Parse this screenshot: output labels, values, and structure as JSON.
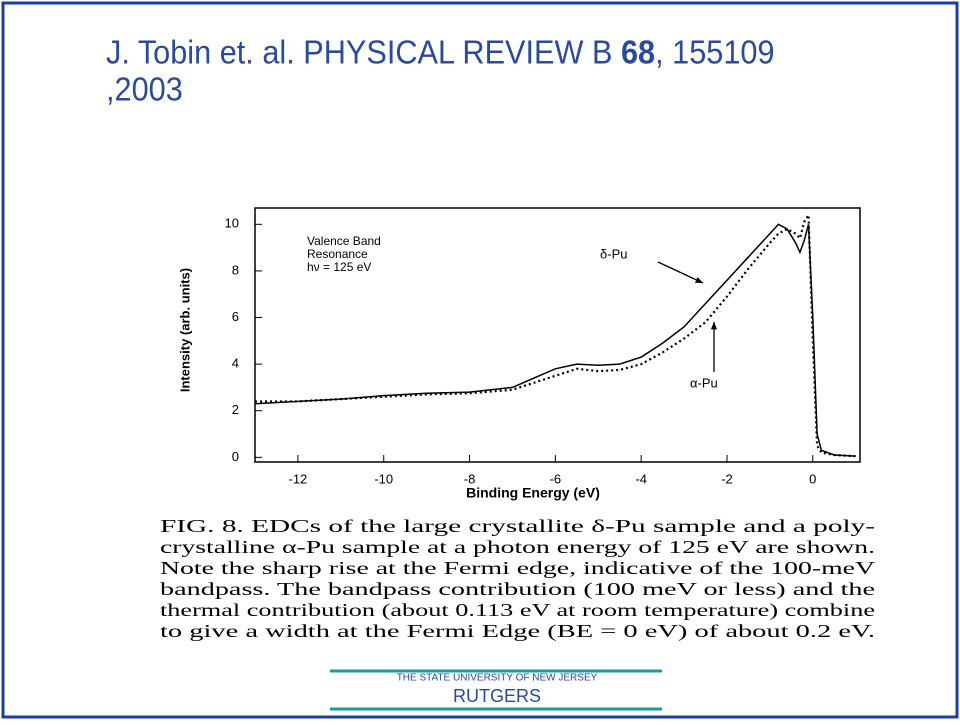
{
  "title": {
    "prefix": "J. Tobin et. al. PHYSICAL REVIEW B ",
    "volume": "68",
    "suffix": ", 155109",
    "line2": ",2003"
  },
  "chart_data": {
    "type": "line",
    "x_label": "Binding Energy (eV)",
    "y_label": "Intensity (arb. units)",
    "annotations": [
      "Valence Band",
      "Resonance",
      "hν = 125 eV"
    ],
    "x": [
      -13,
      -12,
      -11,
      -10,
      -9,
      -8,
      -7,
      -6.5,
      -6,
      -5.5,
      -5,
      -4.5,
      -4,
      -3.5,
      -3,
      -2.5,
      -2,
      -1.5,
      -1,
      -0.8,
      -0.6,
      -0.4,
      -0.3,
      -0.2,
      -0.1,
      0,
      0.1,
      0.2,
      0.5,
      1
    ],
    "series": [
      {
        "name": "δ-Pu",
        "color": "#000000",
        "style": "solid",
        "values": [
          2.3,
          2.4,
          2.5,
          2.65,
          2.75,
          2.8,
          3.0,
          3.4,
          3.8,
          4.0,
          3.95,
          4.0,
          4.3,
          4.9,
          5.6,
          6.6,
          7.6,
          8.6,
          9.6,
          10.0,
          9.8,
          9.2,
          8.8,
          9.3,
          10.0,
          6,
          1,
          0.3,
          0.1,
          0.05
        ]
      },
      {
        "name": "α-Pu",
        "color": "#000000",
        "style": "dotted",
        "values": [
          2.4,
          2.4,
          2.5,
          2.6,
          2.7,
          2.75,
          2.9,
          3.2,
          3.5,
          3.8,
          3.7,
          3.75,
          4.0,
          4.5,
          5.1,
          5.8,
          6.9,
          8.1,
          9.2,
          9.6,
          9.8,
          9.6,
          9.4,
          10.1,
          10.4,
          5,
          0.5,
          0.2,
          0.1,
          0.05
        ]
      }
    ],
    "xlim": [
      -13,
      1.1
    ],
    "xticks": [
      -12,
      -10,
      -8,
      -6,
      -4,
      -2,
      0
    ],
    "ylim": [
      -0.2,
      10.7
    ],
    "yticks": [
      0,
      2,
      4,
      6,
      8,
      10
    ]
  },
  "caption": [
    "FIG. 8. EDCs of the large crystallite δ-Pu sample and a poly-",
    "crystalline α-Pu sample at a photon energy of 125 eV are shown.",
    "Note the sharp rise at the Fermi edge, indicative of the 100-meV",
    "bandpass. The bandpass contribution (100 meV or less) and the",
    "thermal contribution (about 0.113 eV at room temperature) combine",
    "to give a width at the Fermi Edge (BE = 0 eV) of about 0.2 eV."
  ],
  "footer": {
    "university": "THE STATE UNIVERSITY OF NEW JERSEY",
    "name": "RUTGERS"
  }
}
